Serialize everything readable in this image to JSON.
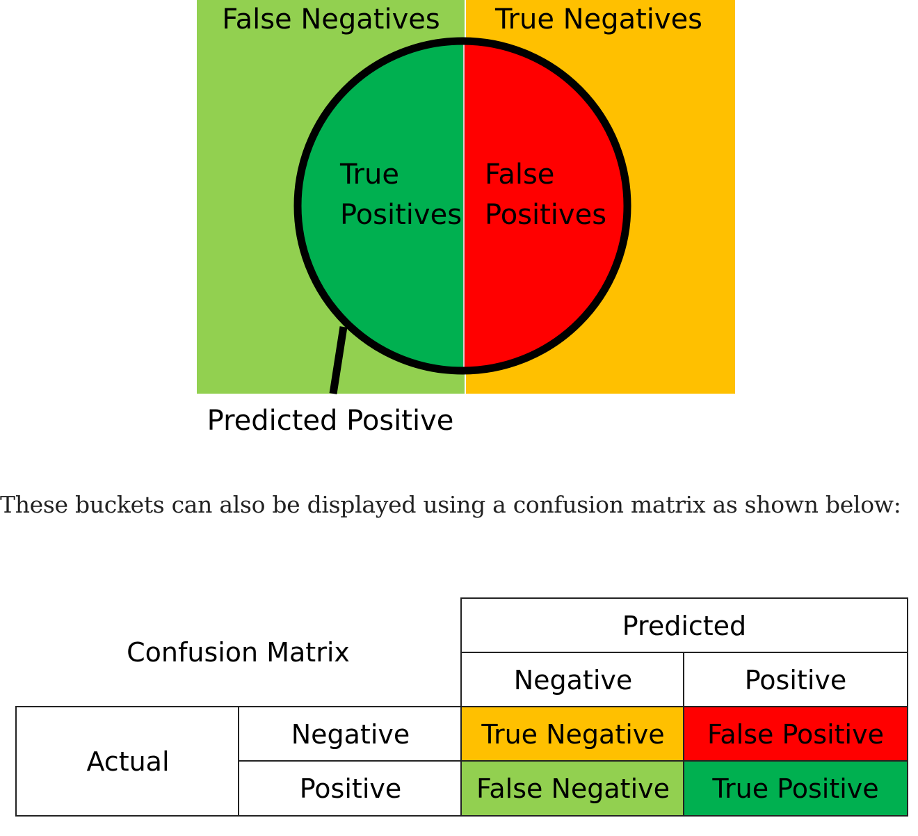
{
  "venn": {
    "labels": {
      "false_negatives": "False Negatives",
      "true_negatives": "True Negatives",
      "true_positives_line1": "True",
      "true_positives_line2": "Positives",
      "false_positives_line1": "False",
      "false_positives_line2": "Positives",
      "predicted_positive": "Predicted Positive"
    },
    "colors": {
      "false_negatives": "#92D050",
      "true_negatives": "#FFC000",
      "true_positives": "#00B050",
      "false_positives": "#FF0000",
      "outline": "#000000"
    }
  },
  "caption": "These buckets can also be displayed using a confusion matrix as shown below:",
  "matrix": {
    "title": "Confusion Matrix",
    "predicted_header": "Predicted",
    "predicted_negative": "Negative",
    "predicted_positive": "Positive",
    "actual_header": "Actual",
    "actual_negative": "Negative",
    "actual_positive": "Positive",
    "cells": {
      "true_negative": "True Negative",
      "false_positive": "False Positive",
      "false_negative": "False Negative",
      "true_positive": "True Positive"
    },
    "colors": {
      "true_negative": "#FFC000",
      "false_positive": "#FF0000",
      "false_negative": "#92D050",
      "true_positive": "#00B050"
    }
  }
}
